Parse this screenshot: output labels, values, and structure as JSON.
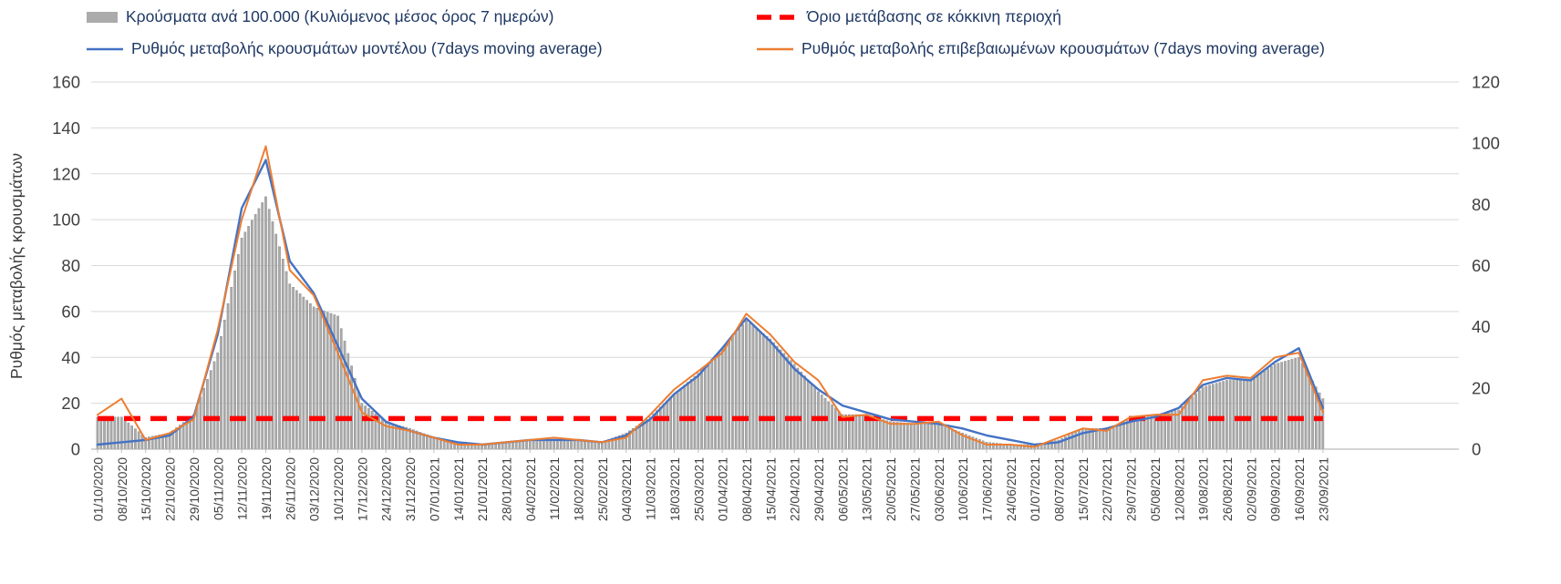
{
  "chart_data": {
    "type": "mixed",
    "title": "",
    "legend_position": "top",
    "grid": true,
    "x_tick_rotation": 90,
    "axes": {
      "left": {
        "label": "Ρυθμός μεταβολής κρουσμάτων",
        "min": 0,
        "max": 160,
        "step": 20
      },
      "right": {
        "label": "",
        "min": 0,
        "max": 120,
        "step": 20
      }
    },
    "categories": [
      "01/10/2020",
      "08/10/2020",
      "15/10/2020",
      "22/10/2020",
      "29/10/2020",
      "05/11/2020",
      "12/11/2020",
      "19/11/2020",
      "26/11/2020",
      "03/12/2020",
      "10/12/2020",
      "17/12/2020",
      "24/12/2020",
      "31/12/2020",
      "07/01/2021",
      "14/01/2021",
      "21/01/2021",
      "28/01/2021",
      "04/02/2021",
      "11/02/2021",
      "18/02/2021",
      "25/02/2021",
      "04/03/2021",
      "11/03/2021",
      "18/03/2021",
      "25/03/2021",
      "01/04/2021",
      "08/04/2021",
      "15/04/2021",
      "22/04/2021",
      "29/04/2021",
      "06/05/2021",
      "13/05/2021",
      "20/05/2021",
      "27/05/2021",
      "03/06/2021",
      "10/06/2021",
      "17/06/2021",
      "24/06/2021",
      "01/07/2021",
      "08/07/2021",
      "15/07/2021",
      "22/07/2021",
      "29/07/2021",
      "05/08/2021",
      "12/08/2021",
      "19/08/2021",
      "26/08/2021",
      "02/09/2021",
      "09/09/2021",
      "16/09/2021",
      "23/09/2021"
    ],
    "series": [
      {
        "name": "Κρούσματα ανά 100.000 (Κυλιόμενος μέσος όρος 7 ημερών)",
        "type": "bar",
        "axis": "right",
        "color": "#ABABAB",
        "border_color": "#8F8F8F",
        "values": [
          10.5,
          10.5,
          3.8,
          5.3,
          11.3,
          31.5,
          69,
          82.5,
          54,
          46.5,
          43.5,
          15,
          9,
          6.8,
          3.8,
          2.3,
          1.5,
          2.3,
          3,
          3,
          3,
          2.3,
          5.3,
          10.5,
          18,
          24.8,
          33,
          42,
          36,
          27.8,
          18.8,
          11.3,
          11.3,
          9,
          8.3,
          8.3,
          5.3,
          2.3,
          1.5,
          1.5,
          3,
          6.8,
          6.8,
          9.8,
          11.3,
          12.8,
          20.3,
          22.5,
          22.5,
          27.8,
          30,
          16.5
        ]
      },
      {
        "name": "Ρυθμός μεταβολής κρουσμάτων μοντέλου (7days moving average)",
        "type": "line",
        "axis": "left",
        "color": "#4472C4",
        "values": [
          2,
          3,
          4,
          6,
          14,
          50,
          105,
          126,
          82,
          68,
          45,
          22,
          12,
          8,
          5,
          3,
          2,
          3,
          4,
          4,
          4,
          3,
          6,
          13,
          24,
          32,
          44,
          57,
          47,
          35,
          26,
          19,
          16,
          13,
          12,
          11,
          9,
          6,
          4,
          2,
          3,
          7,
          9,
          12,
          14,
          18,
          28,
          31,
          30,
          38,
          44,
          18
        ]
      },
      {
        "name": "Ρυθμός μεταβολής επιβεβαιωμένων κρουσμάτων (7days moving average)",
        "type": "line",
        "axis": "left",
        "color": "#ED7D31",
        "values": [
          15,
          22,
          4,
          7,
          13,
          52,
          100,
          132,
          78,
          67,
          42,
          16,
          10,
          8,
          5,
          2,
          2,
          3,
          4,
          5,
          4,
          3,
          5,
          15,
          26,
          34,
          42,
          59,
          50,
          38,
          30,
          14,
          15,
          11,
          11,
          12,
          6,
          2,
          2,
          1,
          5,
          9,
          8,
          14,
          15,
          15,
          30,
          32,
          31,
          40,
          42,
          16
        ]
      }
    ],
    "threshold": {
      "name": "Όριο μετάβασης σε κόκκινη περιοχή",
      "type": "dashed_line",
      "axis": "right",
      "value": 10,
      "color": "#FF0000"
    }
  }
}
